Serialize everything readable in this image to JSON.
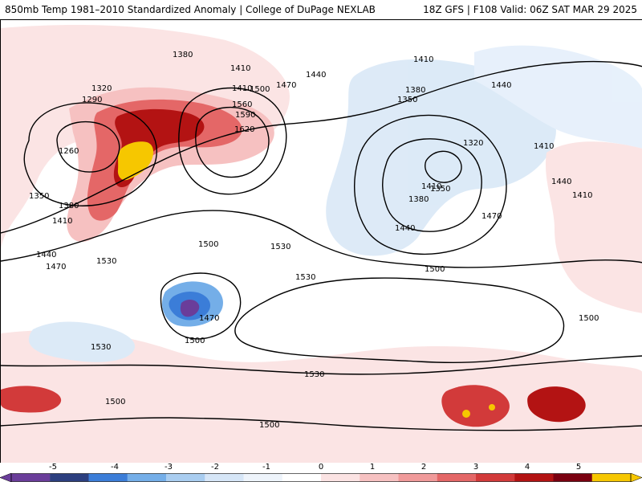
{
  "header": {
    "left_title": "850mb Temp 1981–2010 Standardized Anomaly | College of DuPage NEXLAB",
    "right_title": "18Z GFS | F108 Valid: 06Z SAT MAR 29 2025"
  },
  "map": {
    "contour_labels": [
      "1380",
      "1410",
      "1320",
      "1290",
      "1260",
      "1350",
      "1380",
      "1410",
      "1440",
      "1470",
      "1530",
      "1410",
      "1440",
      "1470",
      "1500",
      "1560",
      "1590",
      "1620",
      "1530",
      "1500",
      "1470",
      "1500",
      "1530",
      "1530",
      "1530",
      "1500",
      "1500",
      "1410",
      "1380",
      "1350",
      "1320",
      "1350",
      "1380",
      "1410",
      "1440",
      "1470",
      "1500",
      "1440",
      "1410",
      "1440",
      "1410",
      "1500"
    ]
  },
  "legend": {
    "labels": [
      "-5",
      "-4",
      "-3",
      "-2",
      "-1",
      "0",
      "1",
      "2",
      "3",
      "4",
      "5"
    ],
    "colors": [
      "#6a3d9a",
      "#2c3f7f",
      "#3b7dd8",
      "#74aee8",
      "#a9cdf0",
      "#d6e6f7",
      "#eef4fb",
      "#ffffff",
      "#fbe3e3",
      "#f6c1c1",
      "#f09a9a",
      "#e46767",
      "#d23a3a",
      "#b31313",
      "#7a0010",
      "#f6c700"
    ]
  }
}
